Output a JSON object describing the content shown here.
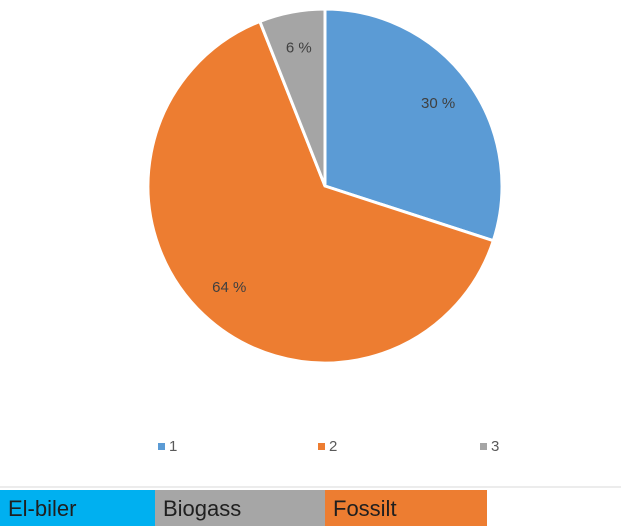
{
  "chart_data": {
    "type": "pie",
    "categories": [
      "1",
      "2",
      "3"
    ],
    "values": [
      30,
      64,
      6
    ],
    "value_labels": [
      "30 %",
      "64 %",
      "6 %"
    ],
    "colors": [
      "#5b9bd5",
      "#ed7d31",
      "#a5a5a5"
    ],
    "legend": "bottom"
  },
  "table": {
    "cells": [
      {
        "text": "El-biler",
        "color": "#00b0f0"
      },
      {
        "text": "Biogass",
        "color": "#a6a6a6"
      },
      {
        "text": "Fossilt",
        "color": "#ed7d31"
      }
    ]
  }
}
